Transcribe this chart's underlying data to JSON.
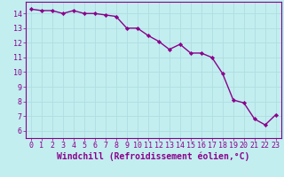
{
  "x": [
    0,
    1,
    2,
    3,
    4,
    5,
    6,
    7,
    8,
    9,
    10,
    11,
    12,
    13,
    14,
    15,
    16,
    17,
    18,
    19,
    20,
    21,
    22,
    23
  ],
  "y": [
    14.3,
    14.2,
    14.2,
    14.0,
    14.2,
    14.0,
    14.0,
    13.9,
    13.8,
    13.0,
    13.0,
    12.5,
    12.1,
    11.55,
    11.9,
    11.3,
    11.3,
    11.0,
    9.9,
    8.1,
    7.9,
    6.8,
    6.4,
    7.1
  ],
  "line_color": "#8B008B",
  "marker_color": "#8B008B",
  "bg_color": "#c2eef0",
  "grid_color": "#b0dde0",
  "xlabel": "Windchill (Refroidissement éolien,°C)",
  "xlim": [
    -0.5,
    23.5
  ],
  "ylim": [
    5.5,
    14.8
  ],
  "yticks": [
    6,
    7,
    8,
    9,
    10,
    11,
    12,
    13,
    14
  ],
  "xticks": [
    0,
    1,
    2,
    3,
    4,
    5,
    6,
    7,
    8,
    9,
    10,
    11,
    12,
    13,
    14,
    15,
    16,
    17,
    18,
    19,
    20,
    21,
    22,
    23
  ],
  "tick_label_fontsize": 6.0,
  "xlabel_fontsize": 7.0,
  "line_width": 1.0,
  "marker_size": 2.2
}
